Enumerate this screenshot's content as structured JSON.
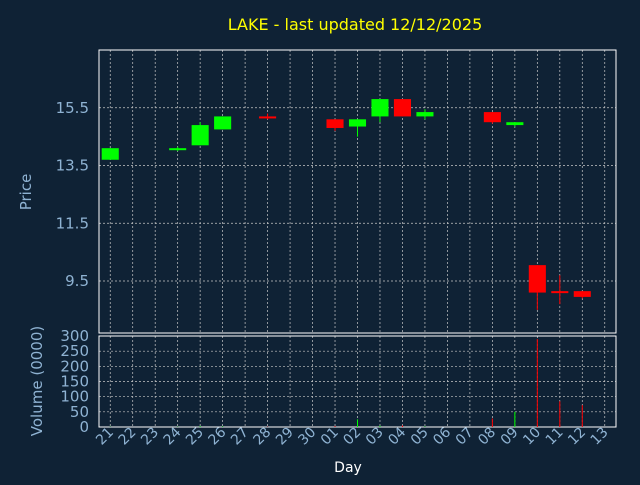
{
  "chart_data": {
    "type": "candlestick",
    "title": "LAKE - last updated 12/12/2025",
    "xlabel": "Day",
    "price_panel": {
      "ylabel": "Price",
      "yticks": [
        "9.5",
        "11.5",
        "13.5",
        "15.5"
      ],
      "ylim": [
        7.7,
        17.5
      ]
    },
    "volume_panel": {
      "ylabel": "Volume (0000)",
      "yticks": [
        "0",
        "50",
        "100",
        "150",
        "200",
        "250",
        "300"
      ],
      "ylim": [
        0,
        300
      ]
    },
    "x_labels": [
      "21",
      "22",
      "23",
      "24",
      "25",
      "26",
      "27",
      "28",
      "29",
      "30",
      "01",
      "02",
      "03",
      "04",
      "05",
      "06",
      "07",
      "08",
      "09",
      "10",
      "11",
      "12",
      "13"
    ],
    "candles": [
      {
        "day": "21",
        "open": 13.7,
        "high": 14.1,
        "low": 13.7,
        "close": 14.1,
        "volume": 1
      },
      {
        "day": "24",
        "open": 14.05,
        "high": 14.15,
        "low": 14.0,
        "close": 14.1,
        "volume": 1
      },
      {
        "day": "25",
        "open": 14.2,
        "high": 15.0,
        "low": 14.2,
        "close": 14.9,
        "volume": 3
      },
      {
        "day": "26",
        "open": 14.75,
        "high": 15.2,
        "low": 14.75,
        "close": 15.2,
        "volume": 2
      },
      {
        "day": "28",
        "open": 15.2,
        "high": 15.3,
        "low": 15.1,
        "close": 15.15,
        "volume": 1
      },
      {
        "day": "01",
        "open": 15.1,
        "high": 15.1,
        "low": 14.7,
        "close": 14.8,
        "volume": 3
      },
      {
        "day": "02",
        "open": 14.85,
        "high": 15.1,
        "low": 14.5,
        "close": 15.1,
        "volume": 25
      },
      {
        "day": "03",
        "open": 15.2,
        "high": 15.8,
        "low": 15.0,
        "close": 15.8,
        "volume": 4
      },
      {
        "day": "04",
        "open": 15.8,
        "high": 15.8,
        "low": 15.2,
        "close": 15.2,
        "volume": 5
      },
      {
        "day": "05",
        "open": 15.2,
        "high": 15.45,
        "low": 15.1,
        "close": 15.35,
        "volume": 2
      },
      {
        "day": "08",
        "open": 15.35,
        "high": 15.35,
        "low": 14.95,
        "close": 15.0,
        "volume": 28
      },
      {
        "day": "09",
        "open": 14.9,
        "high": 15.0,
        "low": 14.85,
        "close": 15.0,
        "volume": 50
      },
      {
        "day": "10",
        "open": 10.05,
        "high": 10.05,
        "low": 8.5,
        "close": 9.1,
        "volume": 290
      },
      {
        "day": "11",
        "open": 9.15,
        "high": 9.7,
        "low": 8.7,
        "close": 9.1,
        "volume": 85
      },
      {
        "day": "12",
        "open": 9.15,
        "high": 9.15,
        "low": 8.9,
        "close": 8.95,
        "volume": 72
      }
    ],
    "colors": {
      "background": "#0f2235",
      "grid": "#c8c8c8",
      "axis": "#ffffff",
      "title": "#ffff00",
      "label": "#8fb3d3",
      "up": "#00ff00",
      "down": "#ff0000"
    },
    "grid": true
  }
}
